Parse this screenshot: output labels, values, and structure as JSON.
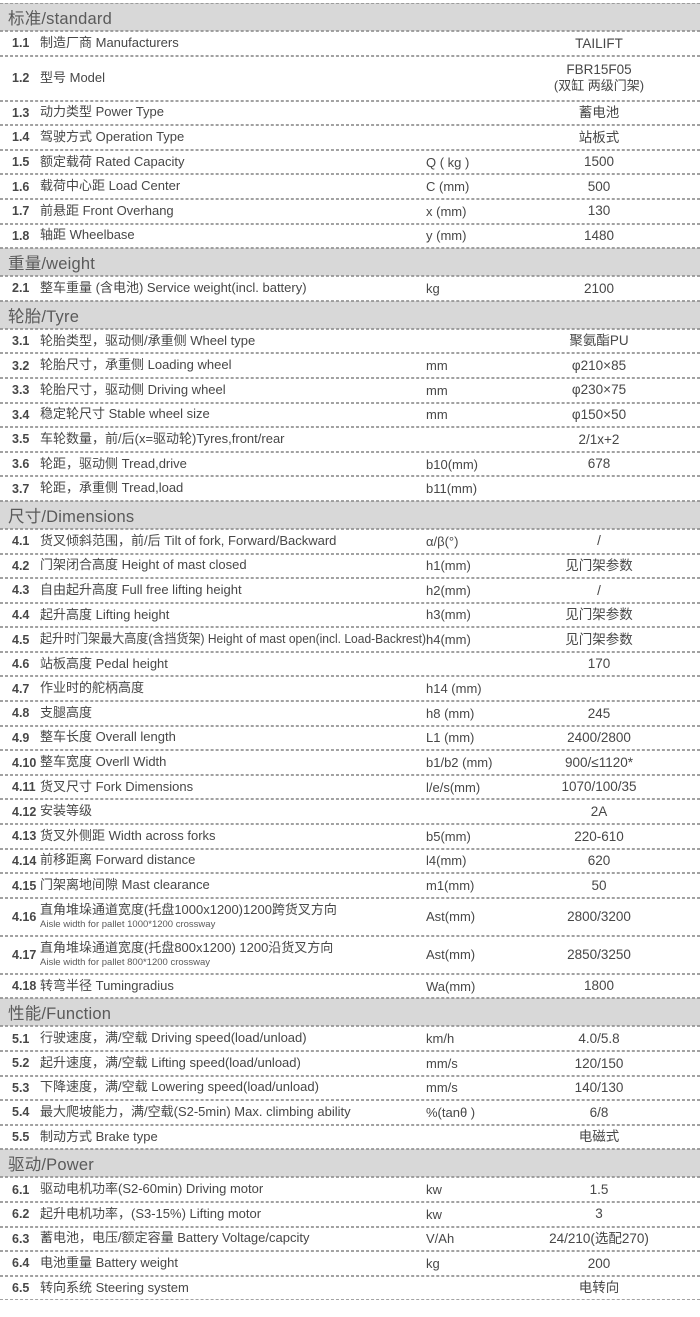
{
  "colors": {
    "section_bg": "#d8d8d8",
    "section_text": "#5a5a5a",
    "row_text": "#474747",
    "border_dash": "#9c9c9c"
  },
  "table": {
    "sections": [
      {
        "title": "标准/standard",
        "rows": [
          {
            "no": "1.1",
            "label": "制造厂商 Manufacturers",
            "unit": "",
            "value": "TAILIFT"
          },
          {
            "no": "1.2",
            "label": "型号 Model",
            "unit": "",
            "value": "FBR15F05",
            "value2": "(双缸 两级门架)"
          },
          {
            "no": "1.3",
            "label": "动力类型 Power Type",
            "unit": "",
            "value": "蓄电池"
          },
          {
            "no": "1.4",
            "label": "驾驶方式 Operation Type",
            "unit": "",
            "value": "站板式"
          },
          {
            "no": "1.5",
            "label": "额定载荷 Rated Capacity",
            "unit": "Q ( kg )",
            "value": "1500"
          },
          {
            "no": "1.6",
            "label": "载荷中心距 Load Center",
            "unit": "C (mm)",
            "value": "500"
          },
          {
            "no": "1.7",
            "label": "前悬距 Front Overhang",
            "unit": "x (mm)",
            "value": "130"
          },
          {
            "no": "1.8",
            "label": "轴距 Wheelbase",
            "unit": "y (mm)",
            "value": "1480"
          }
        ]
      },
      {
        "title": "重量/weight",
        "rows": [
          {
            "no": "2.1",
            "label": "整车重量 (含电池) Service weight(incl. battery)",
            "unit": "kg",
            "value": "2100"
          }
        ]
      },
      {
        "title": "轮胎/Tyre",
        "rows": [
          {
            "no": "3.1",
            "label": "轮胎类型，驱动侧/承重侧  Wheel type",
            "unit": "",
            "value": "聚氨酯PU"
          },
          {
            "no": "3.2",
            "label": "轮胎尺寸，承重侧 Loading wheel",
            "unit": "mm",
            "value": "φ210×85"
          },
          {
            "no": "3.3",
            "label": "轮胎尺寸，驱动侧 Driving wheel",
            "unit": "mm",
            "value": "φ230×75"
          },
          {
            "no": "3.4",
            "label": "稳定轮尺寸 Stable wheel size",
            "unit": "mm",
            "value": "φ150×50"
          },
          {
            "no": "3.5",
            "label": "车轮数量，前/后(x=驱动轮)Tyres,front/rear",
            "unit": "",
            "value": "2/1x+2"
          },
          {
            "no": "3.6",
            "label": "轮距，驱动侧 Tread,drive",
            "unit": "b10(mm)",
            "value": "678"
          },
          {
            "no": "3.7",
            "label": "轮距，承重侧 Tread,load",
            "unit": "b11(mm)",
            "value": ""
          }
        ]
      },
      {
        "title": "尺寸/Dimensions",
        "rows": [
          {
            "no": "4.1",
            "label": "货叉倾斜范围，前/后  Tilt of fork, Forward/Backward",
            "unit": "α/β(°)",
            "value": "/"
          },
          {
            "no": "4.2",
            "label": "门架闭合高度 Height of mast closed",
            "unit": "h1(mm)",
            "value": "见门架参数"
          },
          {
            "no": "4.3",
            "label": "自由起升高度 Full free lifting height",
            "unit": "h2(mm)",
            "value": "/"
          },
          {
            "no": "4.4",
            "label": "起升高度 Lifting height",
            "unit": "h3(mm)",
            "value": "见门架参数"
          },
          {
            "no": "4.5",
            "label": "起升时门架最大高度(含挡货架) Height of mast open(incl. Load-Backrest)",
            "unit": "h4(mm)",
            "value": "见门架参数"
          },
          {
            "no": "4.6",
            "label": "站板高度 Pedal height",
            "unit": "",
            "value": "170"
          },
          {
            "no": "4.7",
            "label": "作业时的舵柄高度",
            "unit": "h14 (mm)",
            "value": ""
          },
          {
            "no": "4.8",
            "label": "支腿高度",
            "unit": "h8 (mm)",
            "value": "245"
          },
          {
            "no": "4.9",
            "label": "整车长度 Overall length",
            "unit": "L1 (mm)",
            "value": "2400/2800"
          },
          {
            "no": "4.10",
            "label": "整车宽度 Overll Width",
            "unit": "b1/b2 (mm)",
            "value": "900/≤1120*"
          },
          {
            "no": "4.11",
            "label": "货叉尺寸 Fork Dimensions",
            "unit": "l/e/s(mm)",
            "value": "1070/100/35"
          },
          {
            "no": "4.12",
            "label": "安装等级",
            "unit": "",
            "value": "2A"
          },
          {
            "no": "4.13",
            "label": "货叉外侧距 Width across forks",
            "unit": "b5(mm)",
            "value": "220-610"
          },
          {
            "no": "4.14",
            "label": "前移距离 Forward distance",
            "unit": "l4(mm)",
            "value": "620"
          },
          {
            "no": "4.15",
            "label": "门架离地间隙  Mast clearance",
            "unit": "m1(mm)",
            "value": "50"
          },
          {
            "no": "4.16",
            "label": "直角堆垛通道宽度(托盘1000x1200)1200跨货叉方向",
            "sublabel": "Aisle width for pallet 1000*1200 crossway",
            "unit": "Ast(mm)",
            "value": "2800/3200"
          },
          {
            "no": "4.17",
            "label": "直角堆垛通道宽度(托盘800x1200) 1200沿货叉方向",
            "sublabel": "Aisle width for pallet 800*1200 crossway",
            "unit": "Ast(mm)",
            "value": "2850/3250"
          },
          {
            "no": "4.18",
            "label": "转弯半径 Tumingradius",
            "unit": "Wa(mm)",
            "value": "1800"
          }
        ]
      },
      {
        "title": "性能/Function",
        "rows": [
          {
            "no": "5.1",
            "label": "行驶速度，满/空载 Driving speed(load/unload)",
            "unit": "km/h",
            "value": "4.0/5.8"
          },
          {
            "no": "5.2",
            "label": "起升速度，满/空载 Lifting speed(load/unload)",
            "unit": "mm/s",
            "value": "120/150"
          },
          {
            "no": "5.3",
            "label": "下降速度，满/空载 Lowering speed(load/unload)",
            "unit": "mm/s",
            "value": "140/130"
          },
          {
            "no": "5.4",
            "label": "最大爬坡能力，满/空载(S2-5min) Max. climbing ability",
            "unit": "%(tanθ )",
            "value": "6/8"
          },
          {
            "no": "5.5",
            "label": "制动方式 Brake type",
            "unit": "",
            "value": "电磁式"
          }
        ]
      },
      {
        "title": "驱动/Power",
        "rows": [
          {
            "no": "6.1",
            "label": "驱动电机功率(S2-60min) Driving motor",
            "unit": "kw",
            "value": "1.5"
          },
          {
            "no": "6.2",
            "label": "起升电机功率，(S3-15%) Lifting motor",
            "unit": "kw",
            "value": "3"
          },
          {
            "no": "6.3",
            "label": "蓄电池，电压/额定容量 Battery Voltage/capcity",
            "unit": "V/Ah",
            "value": "24/210(选配270)"
          },
          {
            "no": "6.4",
            "label": "电池重量 Battery weight",
            "unit": "kg",
            "value": "200"
          },
          {
            "no": "6.5",
            "label": "转向系统 Steering system",
            "unit": "",
            "value": "电转向"
          }
        ]
      }
    ]
  }
}
